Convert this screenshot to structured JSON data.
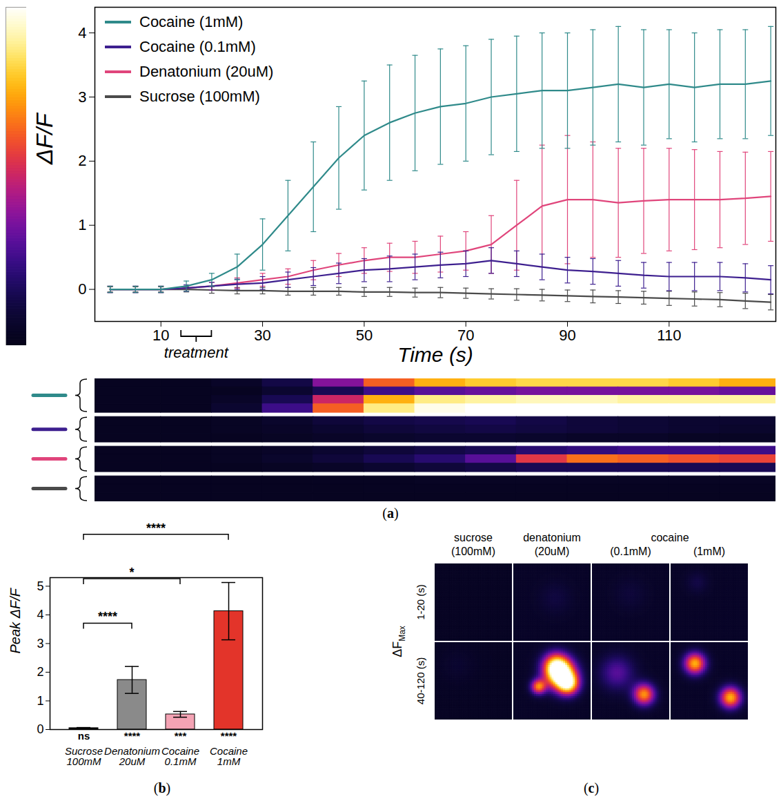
{
  "chart_data": [
    {
      "type": "line",
      "panel": "(a)",
      "x_label": "Time (s)",
      "y_label": "ΔF/F",
      "xlim": [
        -3,
        131
      ],
      "xticks": [
        10,
        30,
        50,
        70,
        90,
        110
      ],
      "ylim": [
        -0.5,
        4.4
      ],
      "yticks": [
        0,
        1,
        2,
        3,
        4
      ],
      "legend": "top-left",
      "annotation": {
        "text": "treatment",
        "x1": 14,
        "x2": 20
      },
      "x": [
        0,
        5,
        10,
        15,
        20,
        25,
        30,
        35,
        40,
        45,
        50,
        55,
        60,
        65,
        70,
        75,
        80,
        85,
        90,
        95,
        100,
        105,
        110,
        115,
        120,
        125,
        130
      ],
      "series": [
        {
          "name": "Cocaine (1mM)",
          "color": "#2f8a8a",
          "values": [
            0,
            0,
            0,
            0.05,
            0.15,
            0.35,
            0.7,
            1.15,
            1.6,
            2.05,
            2.4,
            2.6,
            2.75,
            2.85,
            2.9,
            3.0,
            3.05,
            3.1,
            3.1,
            3.15,
            3.2,
            3.15,
            3.2,
            3.15,
            3.2,
            3.2,
            3.25
          ],
          "errors": [
            0.05,
            0.05,
            0.05,
            0.08,
            0.1,
            0.2,
            0.4,
            0.55,
            0.7,
            0.8,
            0.85,
            0.9,
            0.9,
            0.9,
            0.9,
            0.9,
            0.9,
            0.9,
            0.9,
            0.9,
            0.9,
            0.9,
            0.85,
            0.85,
            0.85,
            0.85,
            0.85
          ]
        },
        {
          "name": "Cocaine (0.1mM)",
          "color": "#3d1f8f",
          "values": [
            0,
            0,
            0,
            0.02,
            0.05,
            0.08,
            0.1,
            0.15,
            0.2,
            0.25,
            0.3,
            0.32,
            0.35,
            0.38,
            0.4,
            0.45,
            0.4,
            0.35,
            0.3,
            0.28,
            0.25,
            0.22,
            0.2,
            0.2,
            0.2,
            0.18,
            0.15
          ],
          "errors": [
            0.05,
            0.05,
            0.05,
            0.05,
            0.06,
            0.08,
            0.1,
            0.12,
            0.14,
            0.16,
            0.18,
            0.2,
            0.2,
            0.2,
            0.2,
            0.2,
            0.2,
            0.2,
            0.2,
            0.2,
            0.2,
            0.2,
            0.22,
            0.22,
            0.22,
            0.22,
            0.22
          ]
        },
        {
          "name": "Denatonium (20uM)",
          "color": "#e0457b",
          "values": [
            0,
            0,
            0,
            0.02,
            0.05,
            0.1,
            0.15,
            0.2,
            0.3,
            0.38,
            0.45,
            0.5,
            0.5,
            0.55,
            0.6,
            0.7,
            1.0,
            1.3,
            1.4,
            1.4,
            1.35,
            1.38,
            1.4,
            1.4,
            1.4,
            1.42,
            1.45
          ],
          "errors": [
            0.05,
            0.05,
            0.05,
            0.05,
            0.06,
            0.08,
            0.1,
            0.12,
            0.15,
            0.18,
            0.2,
            0.22,
            0.25,
            0.28,
            0.3,
            0.45,
            0.7,
            0.95,
            1.0,
            0.9,
            0.85,
            0.82,
            0.8,
            0.78,
            0.75,
            0.72,
            0.7
          ]
        },
        {
          "name": "Sucrose (100mM)",
          "color": "#4a4a4a",
          "values": [
            0,
            0,
            0,
            0,
            -0.01,
            -0.02,
            -0.02,
            -0.03,
            -0.03,
            -0.03,
            -0.04,
            -0.04,
            -0.05,
            -0.05,
            -0.06,
            -0.07,
            -0.08,
            -0.09,
            -0.1,
            -0.11,
            -0.12,
            -0.13,
            -0.14,
            -0.15,
            -0.16,
            -0.18,
            -0.2
          ],
          "errors": [
            0.04,
            0.04,
            0.04,
            0.04,
            0.05,
            0.05,
            0.05,
            0.06,
            0.06,
            0.06,
            0.07,
            0.07,
            0.07,
            0.08,
            0.08,
            0.08,
            0.09,
            0.09,
            0.09,
            0.1,
            0.1,
            0.1,
            0.11,
            0.11,
            0.11,
            0.12,
            0.12
          ]
        }
      ]
    },
    {
      "type": "heatmap",
      "xlim": [
        -3,
        131
      ],
      "bins": [
        -3,
        10,
        20,
        30,
        40,
        50,
        60,
        70,
        80,
        90,
        100,
        110,
        120,
        131
      ],
      "color_range": [
        0,
        4
      ],
      "groups": [
        {
          "color": "#2f8a8a",
          "rows": [
            [
              0.1,
              0.1,
              0.2,
              0.5,
              1.5,
              2.5,
              3.0,
              3.2,
              3.3,
              3.3,
              3.3,
              3.2,
              3.0
            ],
            [
              0.1,
              0.1,
              0.1,
              0.3,
              0.6,
              1.0,
              1.2,
              1.3,
              1.4,
              1.4,
              1.4,
              1.4,
              1.3
            ],
            [
              0.1,
              0.1,
              0.2,
              0.6,
              2.0,
              3.0,
              3.5,
              3.6,
              3.7,
              3.7,
              3.6,
              3.6,
              3.6
            ],
            [
              0.1,
              0.1,
              0.3,
              1.0,
              2.5,
              3.5,
              3.9,
              4.0,
              4.0,
              4.0,
              4.0,
              4.0,
              4.0
            ]
          ]
        },
        {
          "color": "#3d1f8f",
          "rows": [
            [
              0.1,
              0.1,
              0.15,
              0.25,
              0.4,
              0.5,
              0.55,
              0.6,
              0.5,
              0.4,
              0.35,
              0.3,
              0.3
            ],
            [
              0.1,
              0.1,
              0.15,
              0.2,
              0.3,
              0.4,
              0.45,
              0.5,
              0.45,
              0.4,
              0.35,
              0.3,
              0.25
            ],
            [
              0.1,
              0.1,
              0.1,
              0.15,
              0.2,
              0.25,
              0.3,
              0.3,
              0.25,
              0.2,
              0.2,
              0.15,
              0.15
            ]
          ]
        },
        {
          "color": "#e0457b",
          "rows": [
            [
              0.1,
              0.1,
              0.15,
              0.2,
              0.3,
              0.4,
              0.5,
              0.6,
              0.8,
              0.9,
              1.0,
              1.0,
              1.0
            ],
            [
              0.1,
              0.1,
              0.15,
              0.25,
              0.4,
              0.6,
              0.8,
              1.2,
              2.2,
              2.6,
              2.5,
              2.4,
              2.3
            ],
            [
              0.1,
              0.1,
              0.1,
              0.15,
              0.2,
              0.3,
              0.4,
              0.5,
              0.6,
              0.6,
              0.6,
              0.6,
              0.6
            ]
          ]
        },
        {
          "color": "#4a4a4a",
          "rows": [
            [
              0.1,
              0.1,
              0.1,
              0.1,
              0.12,
              0.12,
              0.15,
              0.15,
              0.15,
              0.15,
              0.15,
              0.15,
              0.15
            ],
            [
              0.1,
              0.1,
              0.1,
              0.1,
              0.1,
              0.12,
              0.12,
              0.12,
              0.12,
              0.12,
              0.12,
              0.12,
              0.12
            ],
            [
              0.1,
              0.1,
              0.1,
              0.1,
              0.1,
              0.1,
              0.1,
              0.1,
              0.1,
              0.1,
              0.1,
              0.1,
              0.1
            ]
          ]
        }
      ]
    },
    {
      "type": "bar",
      "panel": "(b)",
      "y_label": "Peak ΔF/F",
      "categories": [
        "Sucrose 100mM",
        "Denatonium 20uM",
        "Cocaine 0.1mM",
        "Cocaine 1mM"
      ],
      "values": [
        0.05,
        1.73,
        0.53,
        4.13
      ],
      "errors": [
        0.02,
        0.47,
        0.1,
        1.0
      ],
      "colors": [
        "#000000",
        "#8a8a8a",
        "#f4a3b4",
        "#e3342a"
      ],
      "ylim": [
        0,
        5.3
      ],
      "yticks": [
        0,
        1,
        2,
        3,
        4,
        5
      ],
      "significance": [
        "ns",
        "****",
        "***",
        "****"
      ],
      "comparisons": [
        {
          "from": "Sucrose 100mM",
          "to": "Denatonium 20uM",
          "label": "****",
          "y": 3.7
        },
        {
          "from": "Sucrose 100mM",
          "to": "Cocaine 0.1mM",
          "label": "*",
          "y": 5.25
        },
        {
          "from": "Sucrose 100mM",
          "to": "Cocaine 1mM",
          "label": "****",
          "y": 6.8
        }
      ]
    },
    {
      "type": "image",
      "panel": "(c)",
      "color_range": [
        0,
        4
      ],
      "row_title": {
        "text": "ΔF",
        "subscript": "Max"
      },
      "column_groups": [
        {
          "label": "sucrose",
          "columns": [
            "(100mM)"
          ]
        },
        {
          "label": "denatonium",
          "columns": [
            "(20uM)"
          ]
        },
        {
          "label": "cocaine",
          "columns": [
            "(0.1mM)",
            "(1mM)"
          ]
        }
      ],
      "rows": [
        {
          "label": "1-20 (s)",
          "images": [
            {
              "background": 0.15,
              "spots": []
            },
            {
              "background": 0.2,
              "spots": [
                {
                  "x": 0.55,
                  "y": 0.45,
                  "radius": 0.15,
                  "peak": 0.25
                }
              ]
            },
            {
              "background": 0.2,
              "spots": [
                {
                  "x": 0.5,
                  "y": 0.4,
                  "radius": 0.15,
                  "peak": 0.2
                }
              ]
            },
            {
              "background": 0.2,
              "spots": [
                {
                  "x": 0.35,
                  "y": 0.25,
                  "radius": 0.1,
                  "peak": 0.3
                }
              ]
            }
          ]
        },
        {
          "label": "40-120 (s)",
          "images": [
            {
              "background": 0.15,
              "spots": [
                {
                  "x": 0.3,
                  "y": 0.3,
                  "radius": 0.15,
                  "peak": 0.15
                }
              ]
            },
            {
              "background": 0.2,
              "spots": [
                {
                  "x": 0.62,
                  "y": 0.42,
                  "radius": 0.14,
                  "peak": 3.6
                },
                {
                  "x": 0.72,
                  "y": 0.55,
                  "radius": 0.1,
                  "peak": 2.5
                },
                {
                  "x": 0.55,
                  "y": 0.3,
                  "radius": 0.12,
                  "peak": 2.2
                },
                {
                  "x": 0.33,
                  "y": 0.58,
                  "radius": 0.07,
                  "peak": 2.4
                }
              ]
            },
            {
              "background": 0.2,
              "spots": [
                {
                  "x": 0.33,
                  "y": 0.4,
                  "radius": 0.16,
                  "peak": 1.0
                },
                {
                  "x": 0.68,
                  "y": 0.68,
                  "radius": 0.1,
                  "peak": 2.6
                }
              ]
            },
            {
              "background": 0.2,
              "spots": [
                {
                  "x": 0.32,
                  "y": 0.28,
                  "radius": 0.1,
                  "peak": 2.8
                },
                {
                  "x": 0.78,
                  "y": 0.72,
                  "radius": 0.1,
                  "peak": 2.8
                }
              ]
            }
          ]
        }
      ]
    }
  ]
}
